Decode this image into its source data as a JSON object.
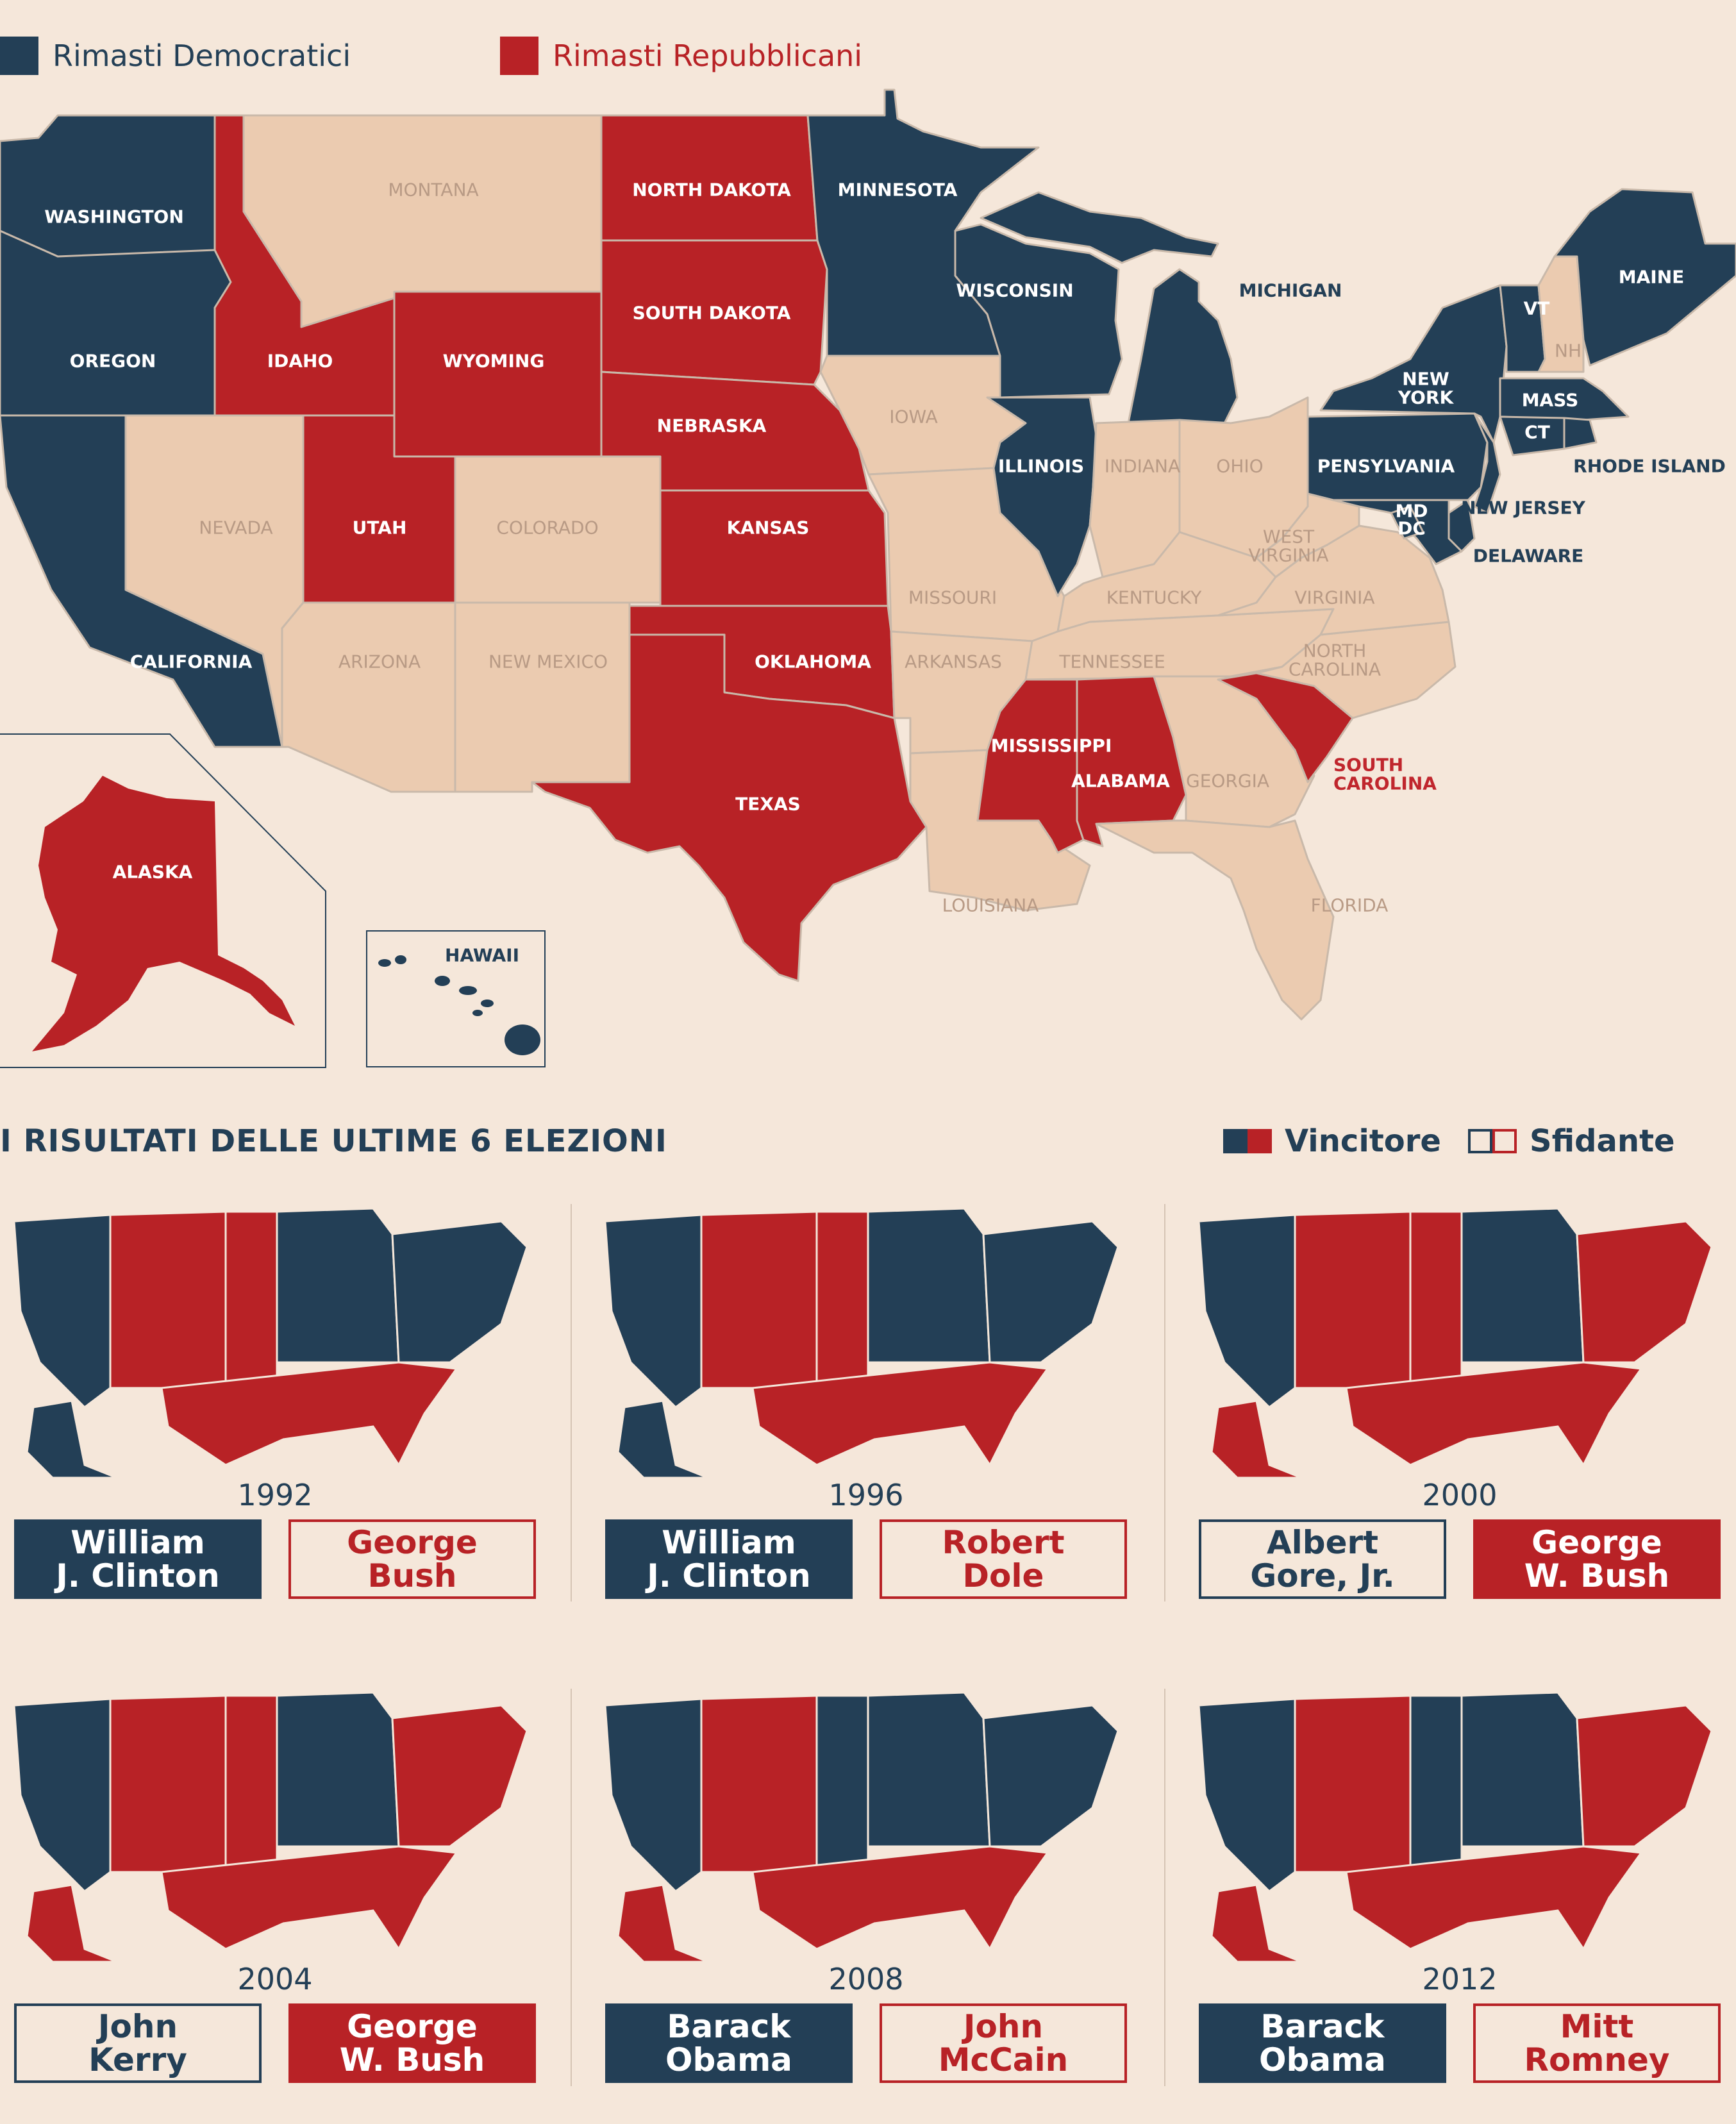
{
  "colors": {
    "dem": "#233f56",
    "rep": "#b82226",
    "swing": "#ebcbb0",
    "bg": "#f5e7da",
    "border": "#c9b9aa"
  },
  "legend": {
    "dem": "Rimasti Democratici",
    "rep": "Rimasti Repubblicani"
  },
  "states": {
    "washington": "WASHINGTON",
    "oregon": "OREGON",
    "california": "CALIFORNIA",
    "idaho": "IDAHO",
    "montana": "MONTANA",
    "nevada": "NEVADA",
    "utah": "UTAH",
    "arizona": "ARIZONA",
    "wyoming": "WYOMING",
    "colorado": "COLORADO",
    "new_mexico": "NEW MEXICO",
    "north_dakota": "NORTH DAKOTA",
    "south_dakota": "SOUTH DAKOTA",
    "nebraska": "NEBRASKA",
    "kansas": "KANSAS",
    "oklahoma": "OKLAHOMA",
    "texas": "TEXAS",
    "minnesota": "MINNESOTA",
    "iowa": "IOWA",
    "missouri": "MISSOURI",
    "arkansas": "ARKANSAS",
    "louisiana": "LOUISIANA",
    "wisconsin": "WISCONSIN",
    "illinois": "ILLINOIS",
    "michigan": "MICHIGAN",
    "indiana": "INDIANA",
    "ohio": "OHIO",
    "kentucky": "KENTUCKY",
    "tennessee": "TENNESSEE",
    "mississippi": "MISSISSIPPI",
    "alabama": "ALABAMA",
    "georgia": "GEORGIA",
    "florida": "FLORIDA",
    "south_carolina": "SOUTH\nCAROLINA",
    "north_carolina": "NORTH\nCAROLINA",
    "virginia": "VIRGINIA",
    "west_virginia": "WEST\nVIRGINIA",
    "pennsylvania": "PENSYLVANIA",
    "new_york": "NEW\nYORK",
    "vermont": "VT",
    "new_hampshire": "NH",
    "maine": "MAINE",
    "massachusetts": "MASS",
    "connecticut": "CT",
    "rhode_island": "RHODE ISLAND",
    "new_jersey": "NEW JERSEY",
    "delaware": "DELAWARE",
    "maryland": "MD",
    "dc": "DC",
    "alaska": "ALASKA",
    "hawaii": "HAWAII"
  },
  "results": {
    "title": "I RISULTATI DELLE ULTIME 6 ELEZIONI",
    "winner": "Vincitore",
    "challenger": "Sfidante",
    "elections": [
      {
        "year": "1992",
        "left": {
          "name": "William\nJ. Clinton",
          "party": "dem",
          "won": true
        },
        "right": {
          "name": "George\nBush",
          "party": "rep",
          "won": false
        }
      },
      {
        "year": "1996",
        "left": {
          "name": "William\nJ. Clinton",
          "party": "dem",
          "won": true
        },
        "right": {
          "name": "Robert\nDole",
          "party": "rep",
          "won": false
        }
      },
      {
        "year": "2000",
        "left": {
          "name": "Albert\nGore, Jr.",
          "party": "dem",
          "won": false
        },
        "right": {
          "name": "George\nW. Bush",
          "party": "rep",
          "won": true
        }
      },
      {
        "year": "2004",
        "left": {
          "name": "John\nKerry",
          "party": "dem",
          "won": false
        },
        "right": {
          "name": "George\nW. Bush",
          "party": "rep",
          "won": true
        }
      },
      {
        "year": "2008",
        "left": {
          "name": "Barack\nObama",
          "party": "dem",
          "won": true
        },
        "right": {
          "name": "John\nMcCain",
          "party": "rep",
          "won": false
        }
      },
      {
        "year": "2012",
        "left": {
          "name": "Barack\nObama",
          "party": "dem",
          "won": true
        },
        "right": {
          "name": "Mitt\nRomney",
          "party": "rep",
          "won": false
        }
      }
    ]
  }
}
